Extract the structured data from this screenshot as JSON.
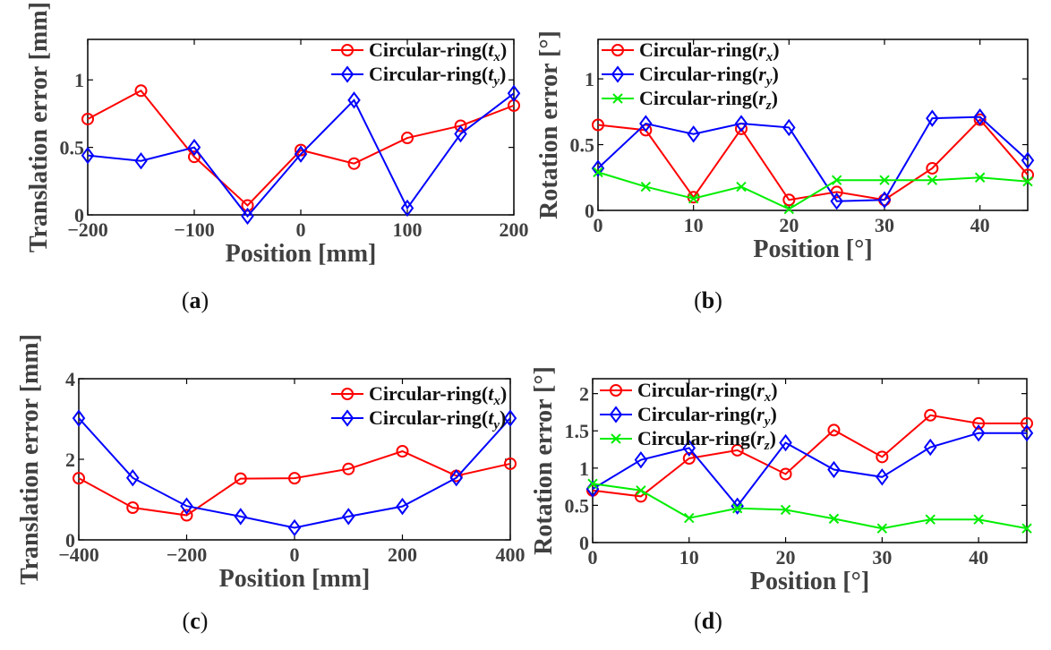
{
  "chart_data": [
    {
      "type": "line",
      "caption": "a",
      "xlabel": "Position [mm]",
      "ylabel": "Translation error [mm]",
      "xlim": [
        -200,
        200
      ],
      "ylim": [
        0,
        1.3
      ],
      "xticks": [
        -200,
        -100,
        0,
        100,
        200
      ],
      "yticks": [
        0,
        0.5,
        1
      ],
      "legend": "top-right",
      "series": [
        {
          "name": "Circular-ring(",
          "sub": "x",
          "suffix": ")",
          "color": "#ff0000",
          "marker": "circle",
          "x": [
            -200,
            -150,
            -100,
            -50,
            0,
            50,
            100,
            150,
            200
          ],
          "y": [
            0.71,
            0.92,
            0.43,
            0.07,
            0.48,
            0.38,
            0.57,
            0.66,
            0.81
          ]
        },
        {
          "name": "Circular-ring(",
          "sub": "y",
          "suffix": ")",
          "color": "#0000ff",
          "marker": "diamond",
          "x": [
            -200,
            -150,
            -100,
            -50,
            0,
            50,
            100,
            150,
            200
          ],
          "y": [
            0.44,
            0.4,
            0.5,
            -0.01,
            0.45,
            0.85,
            0.05,
            0.6,
            0.9
          ]
        }
      ]
    },
    {
      "type": "line",
      "caption": "b",
      "xlabel": "Position [°]",
      "ylabel": "Rotation error [°]",
      "xlim": [
        0,
        45
      ],
      "ylim": [
        0,
        1.3
      ],
      "xticks": [
        0,
        10,
        20,
        30,
        40
      ],
      "yticks": [
        0,
        0.5,
        1
      ],
      "legend": "top-left",
      "series": [
        {
          "name": "Circular-ring(",
          "sub": "x",
          "suffix": ")",
          "color": "#ff0000",
          "marker": "circle",
          "x": [
            0,
            5,
            10,
            15,
            20,
            25,
            30,
            35,
            40,
            45
          ],
          "y": [
            0.65,
            0.61,
            0.1,
            0.62,
            0.08,
            0.14,
            0.08,
            0.32,
            0.69,
            0.27
          ]
        },
        {
          "name": "Circular-ring(",
          "sub": "y",
          "suffix": ")",
          "color": "#0000ff",
          "marker": "diamond",
          "x": [
            0,
            5,
            10,
            15,
            20,
            25,
            30,
            35,
            40,
            45
          ],
          "y": [
            0.32,
            0.66,
            0.58,
            0.66,
            0.63,
            0.07,
            0.08,
            0.7,
            0.71,
            0.38
          ]
        },
        {
          "name": "Circular-ring(",
          "sub": "z",
          "suffix": ")",
          "color": "#00ee00",
          "marker": "x",
          "x": [
            0,
            5,
            10,
            15,
            20,
            25,
            30,
            35,
            40,
            45
          ],
          "y": [
            0.29,
            0.18,
            0.09,
            0.18,
            0.01,
            0.23,
            0.23,
            0.23,
            0.25,
            0.22
          ]
        }
      ]
    },
    {
      "type": "line",
      "caption": "c",
      "xlabel": "Position [mm]",
      "ylabel": "Translation error [mm]",
      "xlim": [
        -400,
        400
      ],
      "ylim": [
        0,
        4
      ],
      "xticks": [
        -400,
        -200,
        0,
        200,
        400
      ],
      "yticks": [
        0,
        2,
        4
      ],
      "legend": "top-right",
      "series": [
        {
          "name": "Circular-ring(",
          "sub": "x",
          "suffix": ")",
          "color": "#ff0000",
          "marker": "circle",
          "x": [
            -400,
            -300,
            -200,
            -100,
            0,
            100,
            200,
            300,
            400
          ],
          "y": [
            1.53,
            0.8,
            0.61,
            1.52,
            1.53,
            1.76,
            2.2,
            1.59,
            1.89
          ]
        },
        {
          "name": "Circular-ring(",
          "sub": "y",
          "suffix": ")",
          "color": "#0000ff",
          "marker": "diamond",
          "x": [
            -400,
            -300,
            -200,
            -100,
            0,
            100,
            200,
            300,
            400
          ],
          "y": [
            3.02,
            1.54,
            0.84,
            0.58,
            0.3,
            0.58,
            0.83,
            1.54,
            3.02
          ]
        }
      ]
    },
    {
      "type": "line",
      "caption": "d",
      "xlabel": "Position [°]",
      "ylabel": "Rotation error [°]",
      "xlim": [
        0,
        45
      ],
      "ylim": [
        0,
        2.2
      ],
      "xticks": [
        0,
        10,
        20,
        30,
        40
      ],
      "yticks": [
        0,
        0.5,
        1,
        1.5,
        2
      ],
      "legend": "top-left",
      "series": [
        {
          "name": "Circular-ring(",
          "sub": "x",
          "suffix": ")",
          "color": "#ff0000",
          "marker": "circle",
          "x": [
            0,
            5,
            10,
            15,
            20,
            25,
            30,
            35,
            40,
            45
          ],
          "y": [
            0.7,
            0.62,
            1.13,
            1.24,
            0.92,
            1.51,
            1.15,
            1.71,
            1.6,
            1.6
          ]
        },
        {
          "name": "Circular-ring(",
          "sub": "y",
          "suffix": ")",
          "color": "#0000ff",
          "marker": "diamond",
          "x": [
            0,
            5,
            10,
            15,
            20,
            25,
            30,
            35,
            40,
            45
          ],
          "y": [
            0.72,
            1.11,
            1.27,
            0.49,
            1.34,
            0.98,
            0.88,
            1.28,
            1.47,
            1.47
          ]
        },
        {
          "name": "Circular-ring(",
          "sub": "z",
          "suffix": ")",
          "color": "#00ee00",
          "marker": "x",
          "x": [
            0,
            5,
            10,
            15,
            20,
            25,
            30,
            35,
            40,
            45
          ],
          "y": [
            0.79,
            0.7,
            0.33,
            0.46,
            0.44,
            0.32,
            0.19,
            0.31,
            0.31,
            0.19
          ]
        }
      ]
    }
  ]
}
